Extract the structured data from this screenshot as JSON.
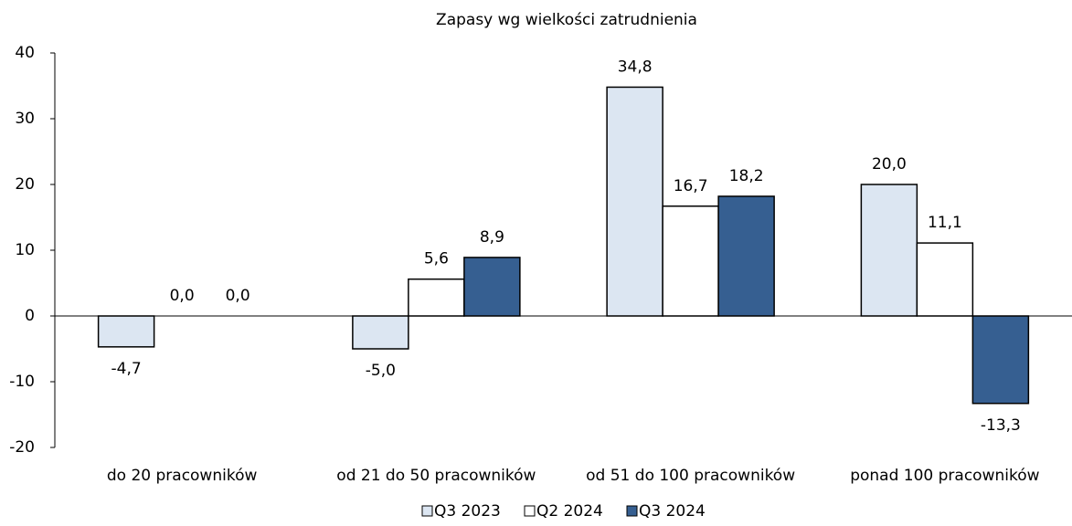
{
  "chart_data": {
    "type": "bar",
    "title": "Zapasy wg wielkości zatrudnienia",
    "categories": [
      "do 20 pracowników",
      "od 21 do 50 pracowników",
      "od 51 do 100 pracowników",
      "ponad 100 pracowników"
    ],
    "series": [
      {
        "name": "Q3 2023",
        "color": "#dce6f2",
        "values": [
          -4.7,
          -5.0,
          34.8,
          20.0
        ],
        "value_labels": [
          "-4,7",
          "-5,0",
          "34,8",
          "20,0"
        ]
      },
      {
        "name": "Q2 2024",
        "color": "#ffffff",
        "values": [
          0.0,
          5.6,
          16.7,
          11.1
        ],
        "value_labels": [
          "0,0",
          "5,6",
          "16,7",
          "11,1"
        ]
      },
      {
        "name": "Q3 2024",
        "color": "#365f91",
        "values": [
          0.0,
          8.9,
          18.2,
          -13.3
        ],
        "value_labels": [
          "0,0",
          "8,9",
          "18,2",
          "-13,3"
        ]
      }
    ],
    "ylim": [
      -20,
      40
    ],
    "yticks": [
      -20,
      -10,
      0,
      10,
      20,
      30,
      40
    ],
    "grid": false,
    "legend": "bottom"
  }
}
